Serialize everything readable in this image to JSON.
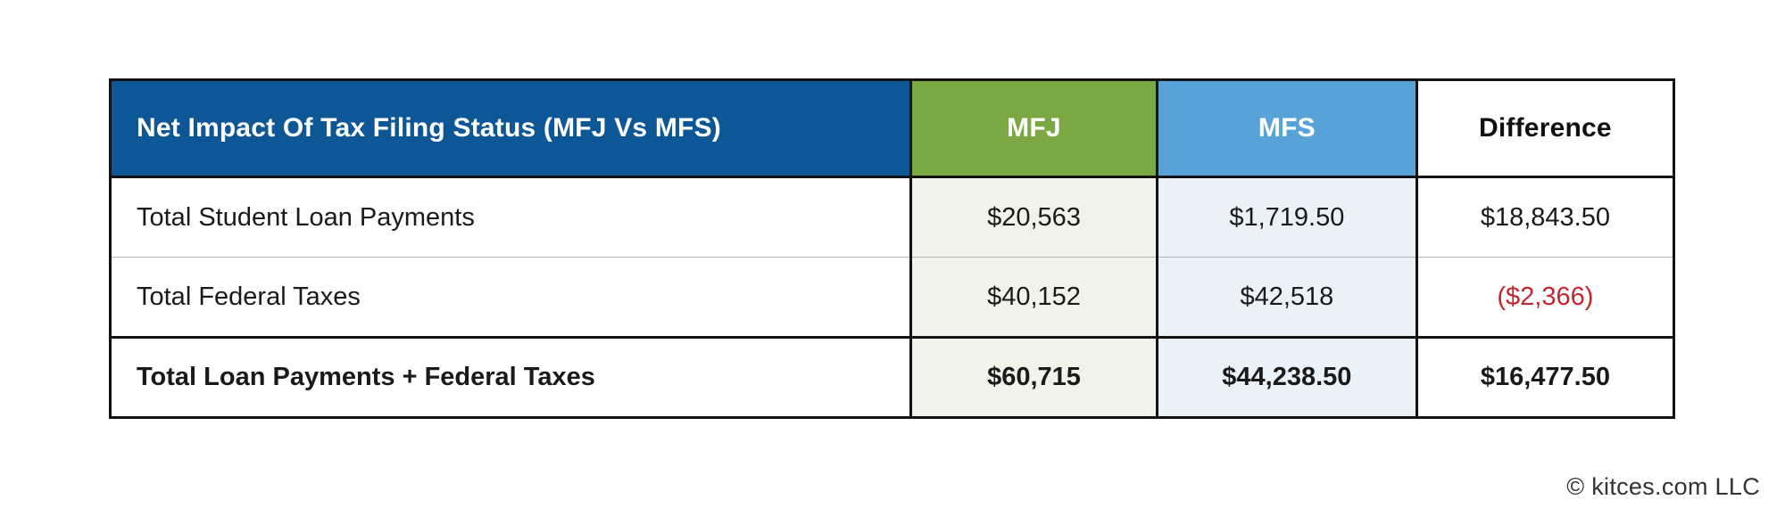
{
  "table": {
    "title": "Net Impact Of Tax Filing Status (MFJ Vs MFS)",
    "columns": [
      "MFJ",
      "MFS",
      "Difference"
    ],
    "rows": [
      {
        "label": "Total Student Loan Payments",
        "mfj": "$20,563",
        "mfs": "$1,719.50",
        "difference": "$18,843.50"
      },
      {
        "label": "Total Federal Taxes",
        "mfj": "$40,152",
        "mfs": "$42,518",
        "difference": "($2,366)"
      },
      {
        "label": "Total Loan Payments + Federal Taxes",
        "mfj": "$60,715",
        "mfs": "$44,238.50",
        "difference": "$16,477.50"
      }
    ]
  },
  "footer": {
    "copyright": "© kitces.com LLC"
  },
  "colors": {
    "header_blue": "#0E5796",
    "mfj_green": "#7CA844",
    "mfs_blue": "#57A3D9",
    "mfj_cell_tint": "#F0F3E7",
    "mfs_cell_tint": "#E9F1F9",
    "negative_red": "#C22630",
    "border_black": "#121212"
  },
  "chart_data": {
    "type": "table",
    "title": "Net Impact Of Tax Filing Status (MFJ Vs MFS)",
    "columns": [
      "MFJ",
      "MFS",
      "Difference"
    ],
    "rows": [
      {
        "label": "Total Student Loan Payments",
        "MFJ": 20563,
        "MFS": 1719.5,
        "Difference": 18843.5
      },
      {
        "label": "Total Federal Taxes",
        "MFJ": 40152,
        "MFS": 42518,
        "Difference": -2366
      },
      {
        "label": "Total Loan Payments + Federal Taxes",
        "MFJ": 60715,
        "MFS": 44238.5,
        "Difference": 16477.5
      }
    ],
    "notes": "Negative difference shown in red parentheses; last row is bold totals row"
  }
}
